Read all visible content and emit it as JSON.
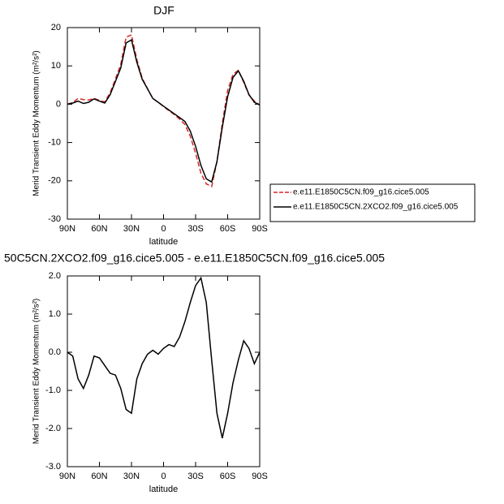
{
  "chart_data": [
    {
      "type": "line",
      "title": "DJF",
      "x": [
        90,
        85,
        80,
        75,
        70,
        65,
        60,
        55,
        50,
        45,
        40,
        35,
        30,
        25,
        20,
        15,
        10,
        5,
        0,
        -5,
        -10,
        -15,
        -20,
        -25,
        -30,
        -35,
        -40,
        -45,
        -50,
        -55,
        -60,
        -65,
        -70,
        -75,
        -80,
        -85,
        -90
      ],
      "series": [
        {
          "name": "e.e11.E1850C5CN.f09_g16.cice5.005",
          "color": "#d62728",
          "dash": "dashed",
          "values": [
            0,
            0.4,
            1.5,
            1.2,
            1.1,
            1.5,
            1.0,
            0.6,
            3.0,
            6.6,
            10.4,
            17.5,
            18.1,
            11.7,
            6.8,
            4.0,
            1.5,
            0.5,
            -0.6,
            -1.7,
            -2.7,
            -3.9,
            -5.3,
            -8.3,
            -12.8,
            -18,
            -20.8,
            -21.5,
            -15,
            -5,
            3.6,
            7.8,
            8.9,
            5.7,
            2.4,
            0.8,
            -0.2
          ]
        },
        {
          "name": "e.e11.E1850C5CN.2XCO2.f09_g16.cice5.005",
          "color": "#000000",
          "dash": "solid",
          "values": [
            0,
            0.3,
            0.8,
            0.2,
            0.5,
            1.4,
            0.8,
            0.3,
            2.5,
            6,
            9.5,
            16,
            16.8,
            11,
            6.5,
            4,
            1.5,
            0.5,
            -0.5,
            -1.5,
            -2.5,
            -3.5,
            -4.5,
            -7,
            -11,
            -16,
            -19.5,
            -20.3,
            -15,
            -6,
            2,
            7,
            8.7,
            6,
            2.5,
            0.5,
            -0.2
          ]
        }
      ],
      "xlabel": "latitude",
      "ylabel": "Merid Transient Eddy Momentum (m²/s²)",
      "xlim": [
        90,
        -90
      ],
      "xticks": [
        {
          "value": 90,
          "label": "90N"
        },
        {
          "value": 60,
          "label": "60N"
        },
        {
          "value": 30,
          "label": "30N"
        },
        0,
        {
          "value": -30,
          "label": "30S"
        },
        {
          "value": -60,
          "label": "60S"
        },
        {
          "value": -90,
          "label": "90S"
        }
      ],
      "ylim": [
        -30,
        20
      ],
      "yticks": [
        -30,
        -20,
        -10,
        0,
        10,
        20
      ],
      "legend": "outside-right"
    },
    {
      "type": "line",
      "title": "50C5CN.2XCO2.f09_g16.cice5.005 - e.e11.E1850C5CN.f09_g16.cice5.005",
      "x": [
        90,
        85,
        80,
        75,
        70,
        65,
        60,
        55,
        50,
        45,
        40,
        35,
        30,
        25,
        20,
        15,
        10,
        5,
        0,
        -5,
        -10,
        -15,
        -20,
        -25,
        -30,
        -35,
        -40,
        -45,
        -50,
        -55,
        -60,
        -65,
        -70,
        -75,
        -80,
        -85,
        -90
      ],
      "values": [
        0,
        -0.1,
        -0.7,
        -0.95,
        -0.6,
        -0.1,
        -0.15,
        -0.35,
        -0.55,
        -0.6,
        -0.95,
        -1.5,
        -1.6,
        -0.7,
        -0.3,
        -0.05,
        0.05,
        -0.05,
        0.1,
        0.2,
        0.15,
        0.4,
        0.8,
        1.3,
        1.75,
        1.95,
        1.3,
        -0.2,
        -1.6,
        -2.25,
        -1.6,
        -0.8,
        -0.2,
        0.3,
        0.1,
        -0.3,
        0
      ],
      "color": "#000000",
      "xlabel": "latitude",
      "ylabel": "Merid Transient Eddy Momentum (m²/s²)",
      "xlim": [
        90,
        -90
      ],
      "xticks": [
        {
          "value": 90,
          "label": "90N"
        },
        {
          "value": 60,
          "label": "60N"
        },
        {
          "value": 30,
          "label": "30N"
        },
        0,
        {
          "value": -30,
          "label": "30S"
        },
        {
          "value": -60,
          "label": "60S"
        },
        {
          "value": -90,
          "label": "90S"
        }
      ],
      "ylim": [
        -3,
        2
      ],
      "yticks": [
        {
          "value": -3,
          "label": "-3.0"
        },
        {
          "value": -2,
          "label": "-2.0"
        },
        {
          "value": -1,
          "label": "-1.0"
        },
        {
          "value": 0,
          "label": "0.0"
        },
        {
          "value": 1,
          "label": "1.0"
        },
        {
          "value": 2,
          "label": "2.0"
        }
      ]
    }
  ]
}
